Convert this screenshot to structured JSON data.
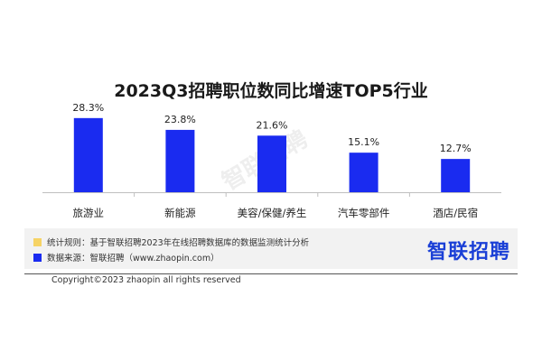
{
  "title": "2023Q3招聘职位数同比增速TOP5行业",
  "legend": [
    {
      "color": "#f6d365",
      "text": "统计规则：基于智联招聘2023年在线招聘数据库的数据监测统计分析"
    },
    {
      "color": "#1a2bf0",
      "text": "数据来源：智联招聘（www.zhaopin.com）"
    }
  ],
  "brand": "智联招聘",
  "watermark": "智联招聘",
  "copyright": "Copyright©2023 zhaopin all rights reserved",
  "colors": {
    "bar": "#1a2bf0",
    "axis": "#bfbfbf"
  },
  "chart_data": {
    "type": "bar",
    "categories": [
      "旅游业",
      "新能源",
      "美容/保健/养生",
      "汽车零部件",
      "酒店/民宿"
    ],
    "values": [
      28.3,
      23.8,
      21.6,
      15.1,
      12.7
    ],
    "data_labels": [
      "28.3%",
      "23.8%",
      "21.6%",
      "15.1%",
      "12.7%"
    ],
    "ylim": [
      0,
      31
    ],
    "grid": false,
    "legend": "none"
  }
}
